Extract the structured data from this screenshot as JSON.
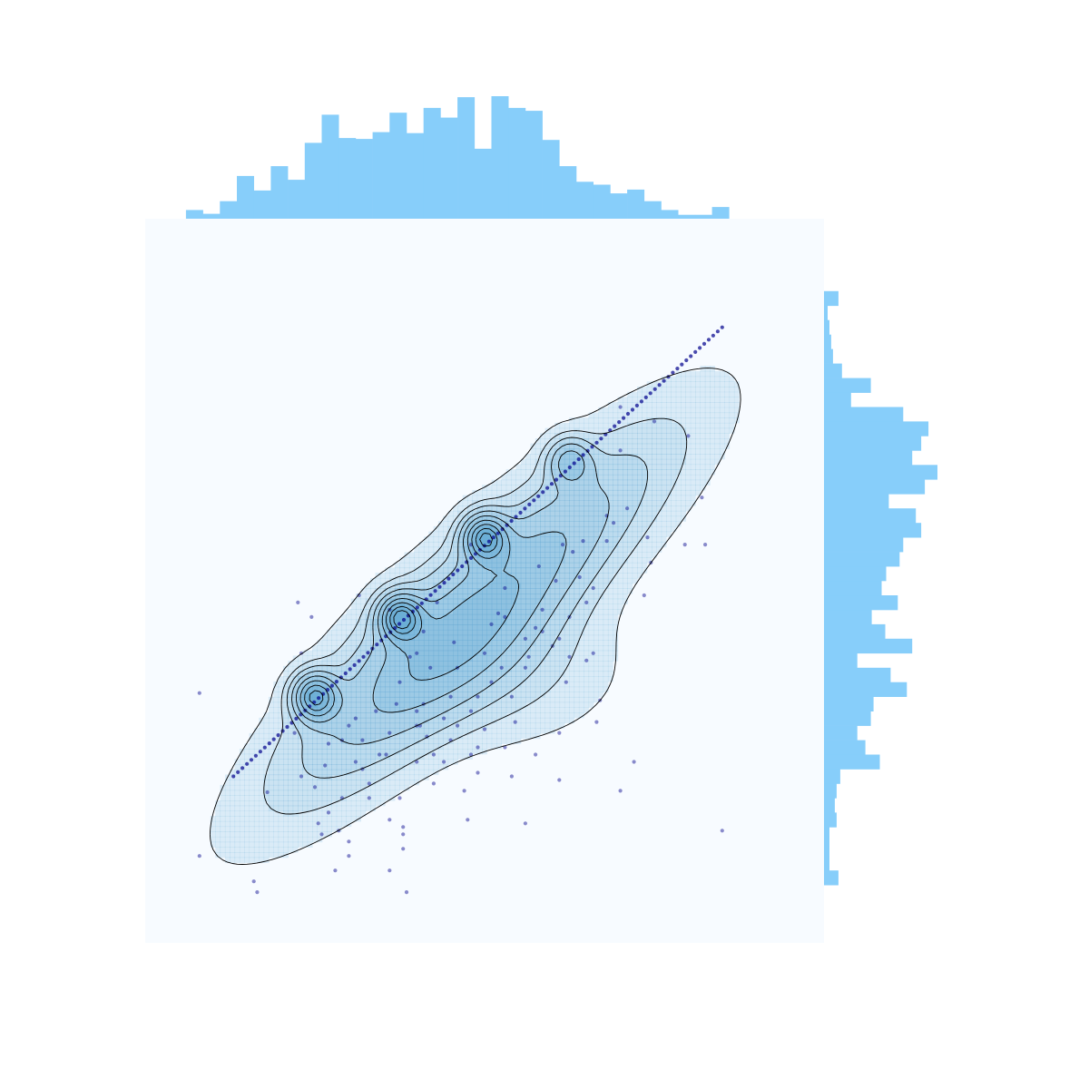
{
  "colors": {
    "background": "#ffffff",
    "joint_background": "#f7fbff",
    "kde_fill": "#6baed6",
    "kde_line": "#000000",
    "scatter": "#00008b",
    "marginal_hist": "#87cefa"
  },
  "chart_data": {
    "type": "scatter",
    "title": "",
    "xlabel": "",
    "ylabel": "",
    "axes_visible": false,
    "grid": false,
    "xlim": [
      0,
      1000
    ],
    "ylim": [
      0,
      1000
    ],
    "kde_peaks": [
      [
        250,
        340
      ],
      [
        375,
        450
      ],
      [
        500,
        560
      ],
      [
        625,
        665
      ]
    ],
    "diagonal_points": {
      "start": [
        130,
        230
      ],
      "end": [
        850,
        850
      ],
      "count": 110
    },
    "scatter_points": [
      [
        80,
        120
      ],
      [
        80,
        345
      ],
      [
        160,
        85
      ],
      [
        165,
        70
      ],
      [
        180,
        208
      ],
      [
        220,
        290
      ],
      [
        225,
        470
      ],
      [
        230,
        400
      ],
      [
        245,
        450
      ],
      [
        255,
        165
      ],
      [
        260,
        150
      ],
      [
        265,
        245
      ],
      [
        270,
        275
      ],
      [
        280,
        100
      ],
      [
        285,
        155
      ],
      [
        290,
        200
      ],
      [
        290,
        280
      ],
      [
        300,
        120
      ],
      [
        310,
        250
      ],
      [
        310,
        310
      ],
      [
        315,
        480
      ],
      [
        320,
        240
      ],
      [
        330,
        200
      ],
      [
        330,
        220
      ],
      [
        340,
        320
      ],
      [
        345,
        260
      ],
      [
        355,
        260
      ],
      [
        360,
        290
      ],
      [
        360,
        170
      ],
      [
        370,
        330
      ],
      [
        375,
        360
      ],
      [
        375,
        200
      ],
      [
        380,
        130
      ],
      [
        380,
        150
      ],
      [
        380,
        160
      ],
      [
        385,
        70
      ],
      [
        390,
        395
      ],
      [
        400,
        300
      ],
      [
        400,
        320
      ],
      [
        400,
        250
      ],
      [
        405,
        300
      ],
      [
        410,
        330
      ],
      [
        415,
        285
      ],
      [
        420,
        380
      ],
      [
        425,
        260
      ],
      [
        425,
        220
      ],
      [
        430,
        470
      ],
      [
        440,
        250
      ],
      [
        450,
        280
      ],
      [
        450,
        340
      ],
      [
        455,
        415
      ],
      [
        460,
        300
      ],
      [
        460,
        380
      ],
      [
        470,
        210
      ],
      [
        475,
        170
      ],
      [
        480,
        260
      ],
      [
        480,
        320
      ],
      [
        490,
        340
      ],
      [
        490,
        270
      ],
      [
        500,
        295
      ],
      [
        500,
        400
      ],
      [
        510,
        440
      ],
      [
        510,
        360
      ],
      [
        520,
        455
      ],
      [
        525,
        380
      ],
      [
        530,
        450
      ],
      [
        530,
        270
      ],
      [
        540,
        230
      ],
      [
        540,
        340
      ],
      [
        545,
        305
      ],
      [
        560,
        380
      ],
      [
        560,
        420
      ],
      [
        565,
        395
      ],
      [
        575,
        260
      ],
      [
        575,
        435
      ],
      [
        585,
        430
      ],
      [
        585,
        460
      ],
      [
        600,
        410
      ],
      [
        605,
        500
      ],
      [
        610,
        290
      ],
      [
        610,
        420
      ],
      [
        610,
        225
      ],
      [
        615,
        550
      ],
      [
        625,
        450
      ],
      [
        625,
        395
      ],
      [
        630,
        540
      ],
      [
        640,
        505
      ],
      [
        645,
        555
      ],
      [
        650,
        390
      ],
      [
        660,
        490
      ],
      [
        660,
        400
      ],
      [
        665,
        305
      ],
      [
        670,
        335
      ],
      [
        680,
        555
      ],
      [
        680,
        590
      ],
      [
        690,
        580
      ],
      [
        700,
        680
      ],
      [
        700,
        210
      ],
      [
        720,
        250
      ],
      [
        740,
        560
      ],
      [
        750,
        720
      ],
      [
        795,
        550
      ],
      [
        800,
        700
      ],
      [
        820,
        615
      ],
      [
        825,
        550
      ],
      [
        850,
        155
      ],
      [
        745,
        525
      ],
      [
        735,
        480
      ],
      [
        700,
        740
      ],
      [
        560,
        165
      ],
      [
        490,
        235
      ],
      [
        440,
        310
      ],
      [
        360,
        100
      ],
      [
        300,
        140
      ],
      [
        270,
        180
      ],
      [
        250,
        215
      ],
      [
        320,
        280
      ],
      [
        480,
        550
      ],
      [
        360,
        460
      ],
      [
        410,
        430
      ],
      [
        400,
        400
      ],
      [
        650,
        470
      ],
      [
        580,
        520
      ],
      [
        530,
        490
      ],
      [
        620,
        360
      ],
      [
        300,
        300
      ],
      [
        230,
        230
      ],
      [
        710,
        600
      ]
    ],
    "kde_density_levels": [
      0.05,
      0.12,
      0.2,
      0.3,
      0.42,
      0.55,
      0.68,
      0.8,
      0.9
    ],
    "marginal_x": {
      "type": "bar",
      "bin_edges": [
        60,
        85,
        110,
        135,
        160,
        185,
        210,
        235,
        260,
        285,
        310,
        335,
        360,
        385,
        410,
        435,
        460,
        485,
        510,
        535,
        560,
        585,
        610,
        635,
        660,
        685,
        710,
        735,
        760,
        785,
        810,
        835,
        860
      ],
      "counts": [
        9,
        5,
        18,
        44,
        29,
        54,
        40,
        78,
        107,
        83,
        82,
        89,
        109,
        88,
        114,
        104,
        125,
        72,
        126,
        114,
        111,
        81,
        54,
        38,
        35,
        26,
        30,
        18,
        9,
        4,
        4,
        12
      ]
    },
    "marginal_y": {
      "type": "bar",
      "bin_edges": [
        80,
        100,
        120,
        140,
        160,
        180,
        200,
        220,
        240,
        260,
        280,
        300,
        320,
        340,
        360,
        380,
        400,
        420,
        440,
        460,
        480,
        500,
        520,
        540,
        560,
        580,
        600,
        620,
        640,
        660,
        680,
        700,
        720,
        740,
        760,
        780,
        800,
        820,
        840,
        860,
        880,
        900
      ],
      "counts": [
        16,
        6,
        6,
        6,
        14,
        12,
        14,
        18,
        62,
        46,
        37,
        52,
        55,
        92,
        74,
        37,
        98,
        68,
        53,
        82,
        64,
        69,
        84,
        88,
        108,
        102,
        72,
        112,
        126,
        98,
        108,
        116,
        88,
        30,
        52,
        20,
        10,
        8,
        6,
        4,
        16
      ]
    }
  }
}
